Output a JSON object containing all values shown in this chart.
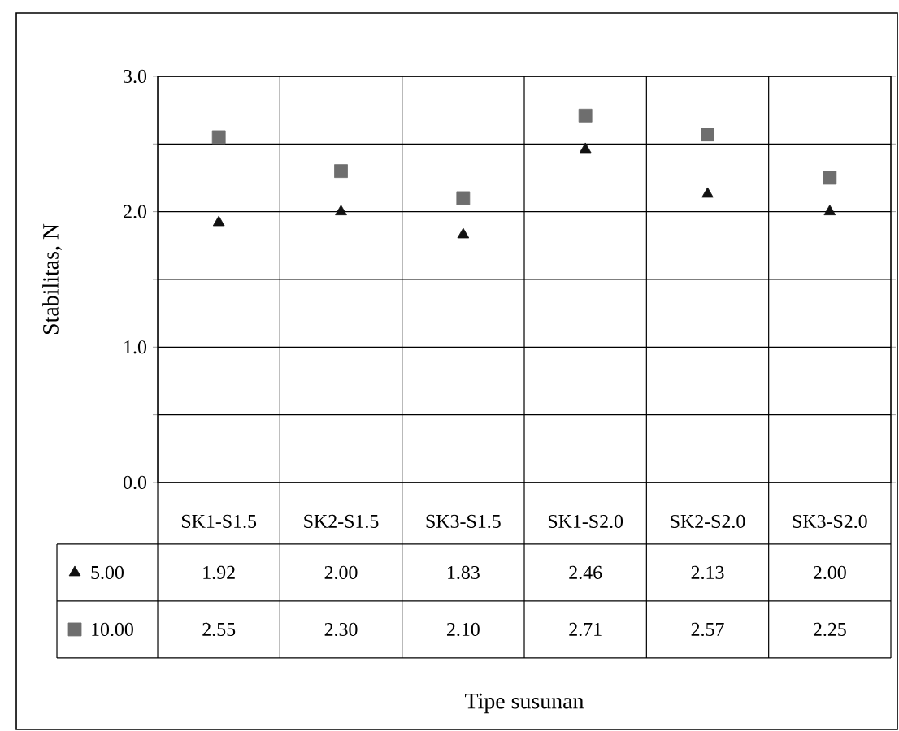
{
  "chart_data": {
    "type": "scatter",
    "annotations": [
      "Tipe susunan"
    ],
    "ylabel": "Stabilitas, N",
    "categories": [
      "SK1-S1.5",
      "SK2-S1.5",
      "SK3-S1.5",
      "SK1-S2.0",
      "SK2-S2.0",
      "SK3-S2.0"
    ],
    "series": [
      {
        "name": "5.00",
        "color": "#111111",
        "marker": "triangle",
        "values": [
          1.92,
          2.0,
          1.83,
          2.46,
          2.13,
          2.0
        ],
        "value_labels": [
          "1.92",
          "2.00",
          "1.83",
          "2.46",
          "2.13",
          "2.00"
        ]
      },
      {
        "name": "10.00",
        "color": "#6e6e6e",
        "marker": "square",
        "values": [
          2.55,
          2.3,
          2.1,
          2.71,
          2.57,
          2.25
        ],
        "value_labels": [
          "2.55",
          "2.30",
          "2.10",
          "2.71",
          "2.57",
          "2.25"
        ]
      }
    ],
    "ylim": [
      0,
      3
    ],
    "yticks": [
      {
        "value": 0,
        "label": "0.0"
      },
      {
        "value": 0.5,
        "label": null
      },
      {
        "value": 1,
        "label": "1.0"
      },
      {
        "value": 1.5,
        "label": null
      },
      {
        "value": 2,
        "label": "2.0"
      },
      {
        "value": 2.5,
        "label": null
      },
      {
        "value": 3,
        "label": "3.0"
      }
    ],
    "grid": true,
    "legend": "bottom"
  }
}
